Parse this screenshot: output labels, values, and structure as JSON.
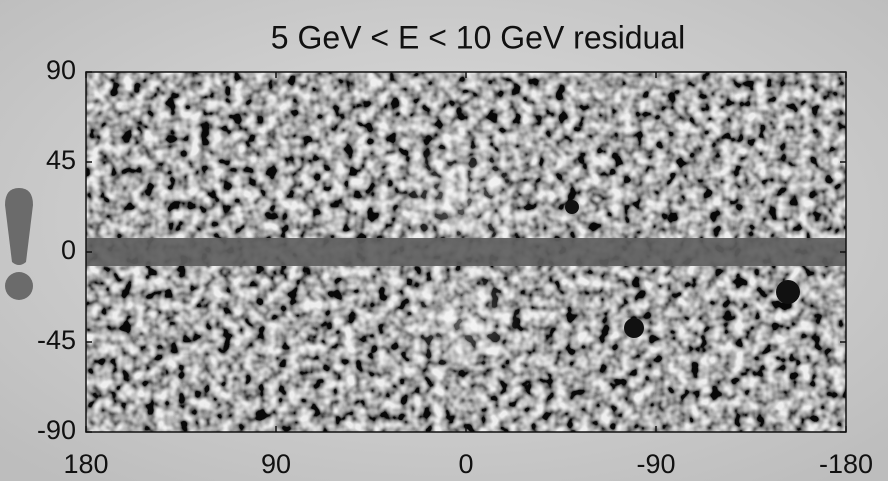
{
  "chart_data": {
    "type": "heatmap",
    "title": "5 GeV < E < 10 GeV residual",
    "xlim": [
      180,
      -180
    ],
    "xticks": [
      180,
      90,
      0,
      -90,
      -180
    ],
    "ylim": [
      -90,
      90
    ],
    "yticks": [
      -90,
      -45,
      0,
      45,
      90
    ],
    "grid": false
  }
}
